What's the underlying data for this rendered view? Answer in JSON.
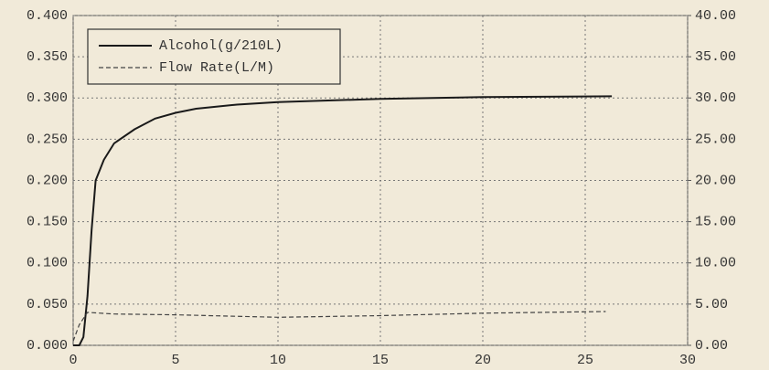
{
  "chart_data": {
    "type": "line",
    "xlim": [
      0,
      30
    ],
    "xticks": [
      0,
      5,
      10,
      15,
      20,
      25,
      30
    ],
    "ylim": [
      0,
      0.4
    ],
    "yticks": [
      {
        "value": 0,
        "label": "0.000"
      },
      {
        "value": 0.05,
        "label": "0.050"
      },
      {
        "value": 0.1,
        "label": "0.100"
      },
      {
        "value": 0.15,
        "label": "0.150"
      },
      {
        "value": 0.2,
        "label": "0.200"
      },
      {
        "value": 0.25,
        "label": "0.250"
      },
      {
        "value": 0.3,
        "label": "0.300"
      },
      {
        "value": 0.35,
        "label": "0.350"
      },
      {
        "value": 0.4,
        "label": "0.400"
      }
    ],
    "y2lim": [
      0,
      40
    ],
    "y2ticks": [
      {
        "value": 0,
        "label": "0.00"
      },
      {
        "value": 5,
        "label": "5.00"
      },
      {
        "value": 10,
        "label": "10.00"
      },
      {
        "value": 15,
        "label": "15.00"
      },
      {
        "value": 20,
        "label": "20.00"
      },
      {
        "value": 25,
        "label": "25.00"
      },
      {
        "value": 30,
        "label": "30.00"
      },
      {
        "value": 35,
        "label": "35.00"
      },
      {
        "value": 40,
        "label": "40.00"
      }
    ],
    "grid": true,
    "legend": "upper left",
    "series": [
      {
        "name": "Alcohol(g/210L)",
        "color": "#1a1a1a",
        "line_style": "solid",
        "x": [
          0,
          0.3,
          0.5,
          0.7,
          0.9,
          1.1,
          1.5,
          2,
          3,
          4,
          5,
          6,
          8,
          10,
          15,
          20,
          26.3
        ],
        "values": [
          0,
          0,
          0.01,
          0.06,
          0.14,
          0.2,
          0.225,
          0.245,
          0.262,
          0.275,
          0.282,
          0.287,
          0.292,
          0.295,
          0.299,
          0.301,
          0.302
        ]
      },
      {
        "name": "Flow Rate(L/M)",
        "color": "#444444",
        "line_style": "dashed",
        "axis": "y2",
        "x": [
          0,
          0.3,
          0.7,
          2,
          5,
          10,
          15,
          20,
          26
        ],
        "values": [
          0.5,
          2.5,
          4.0,
          3.8,
          3.7,
          3.4,
          3.6,
          3.9,
          4.1
        ]
      }
    ]
  }
}
